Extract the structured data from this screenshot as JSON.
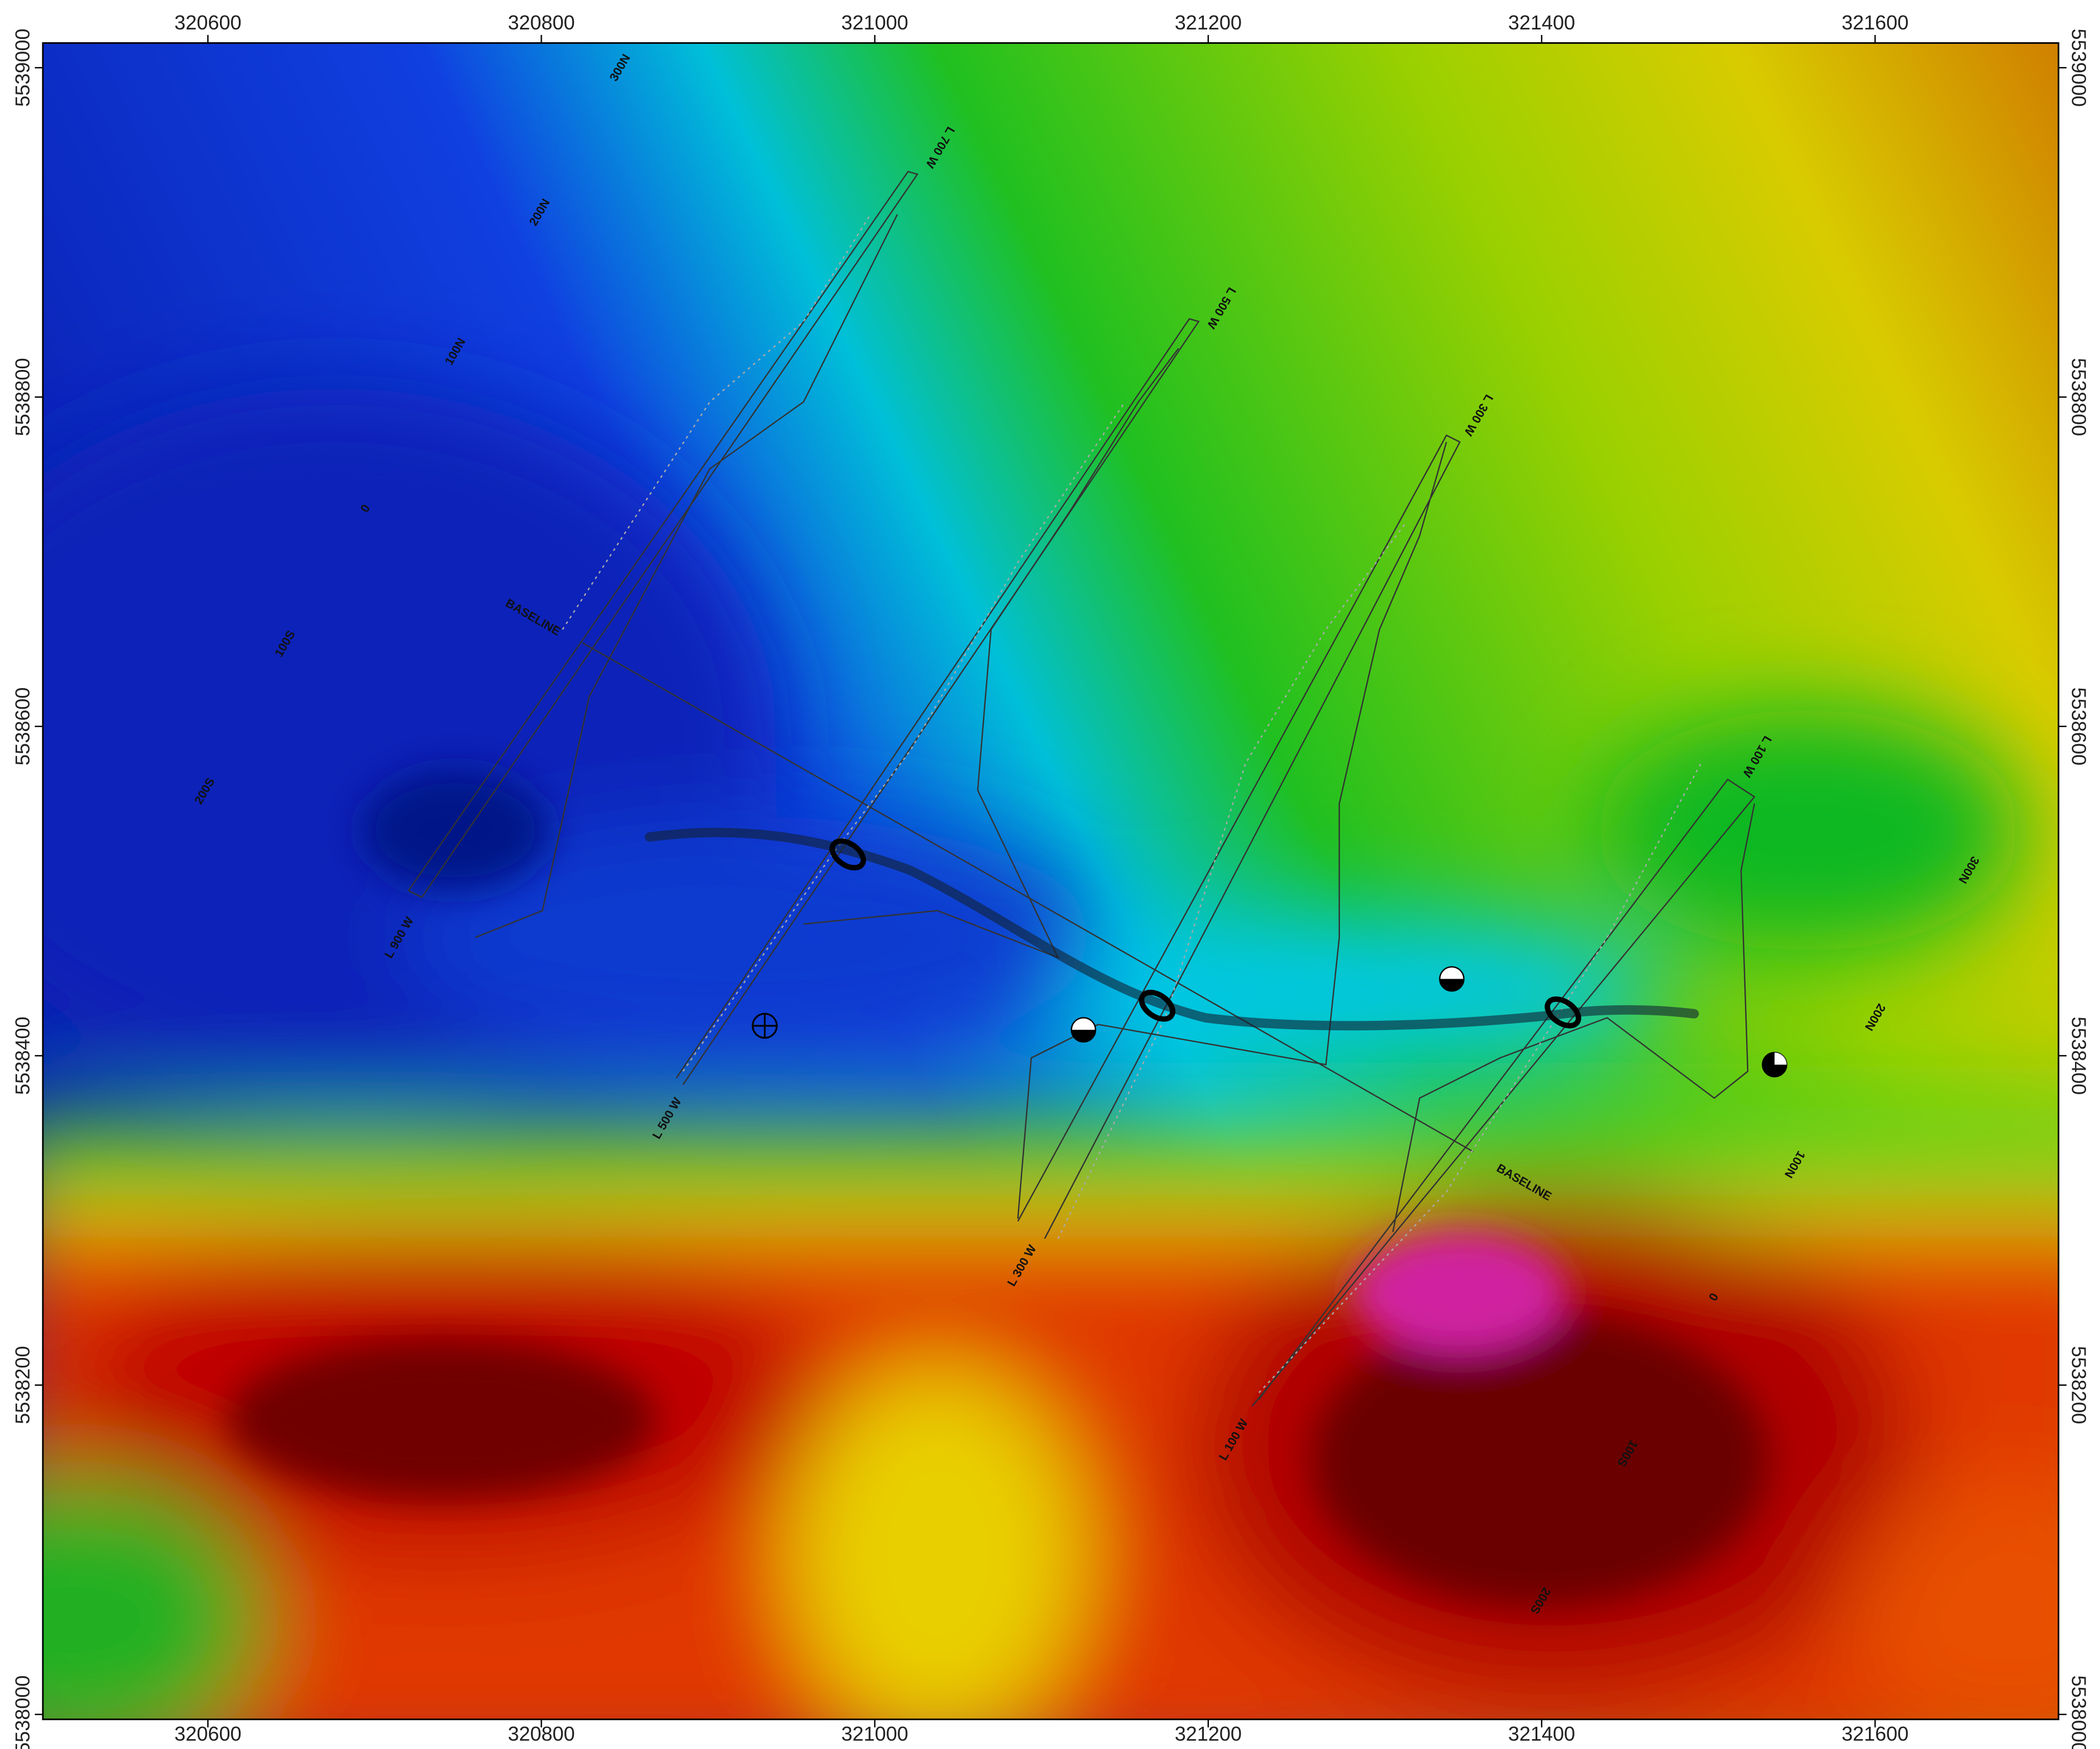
{
  "map": {
    "xlim": [
      320501,
      321710
    ],
    "ylim": [
      5537997,
      5539015
    ],
    "xticks": [
      320600,
      320800,
      321000,
      321200,
      321400,
      321600
    ],
    "yticks": [
      5538000,
      5538200,
      5538400,
      5538600,
      5538800,
      5539000
    ],
    "labels": [
      "300N",
      "200N",
      "100N",
      "0",
      "100S",
      "200S",
      "BASELINE",
      "L 900 W",
      "L 700 W",
      "L 500 W",
      "L 300 W",
      "L 100 W",
      "300N",
      "200N",
      "100N",
      "BASELINE",
      "L 500 W",
      "L 300 W",
      "L 100 W",
      "0",
      "100S",
      "200S"
    ]
  }
}
